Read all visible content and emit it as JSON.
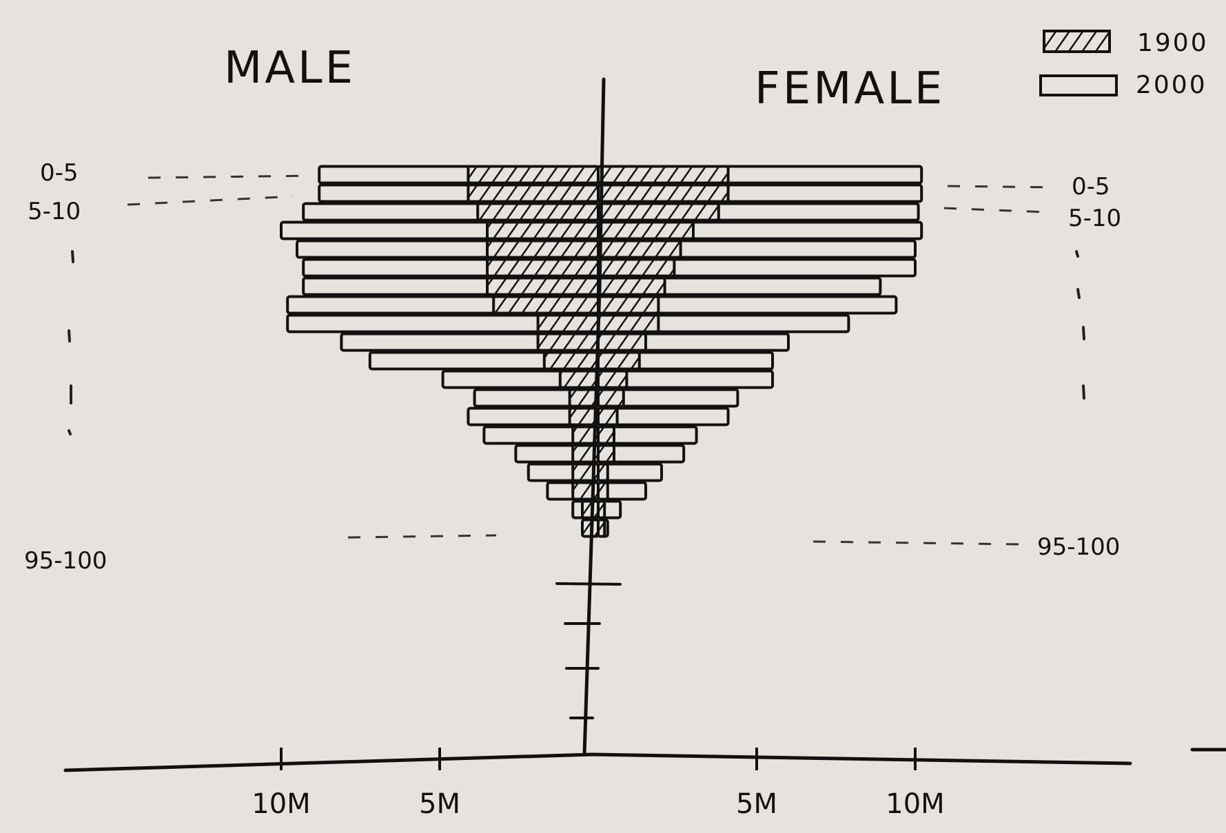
{
  "chart_data": {
    "type": "bar",
    "subtype": "population-pyramid",
    "orientation": "horizontal",
    "sides": {
      "left": "MALE",
      "right": "FEMALE"
    },
    "age_labels_left": {
      "top": "0-5",
      "second": "5-10",
      "bottom": "95-100"
    },
    "age_labels_right": {
      "top": "0-5",
      "second": "5-10",
      "bottom": "95-100"
    },
    "x_ticks": {
      "left": [
        "10M",
        "5M"
      ],
      "right": [
        "5M",
        "10M"
      ]
    },
    "x_tick_values": [
      -10,
      -5,
      5,
      10
    ],
    "xlim_millions": [
      -15,
      15
    ],
    "age_groups_count": 20,
    "legend": {
      "position": "top-right",
      "entries": [
        {
          "label": "1900",
          "pattern": "hatched"
        },
        {
          "label": "2000",
          "pattern": "open"
        }
      ]
    },
    "series": [
      {
        "name": "2000",
        "side": "male",
        "values": [
          8.8,
          8.8,
          9.3,
          10.0,
          9.5,
          9.3,
          9.3,
          9.8,
          9.8,
          8.1,
          7.2,
          4.9,
          3.9,
          4.1,
          3.6,
          2.6,
          2.2,
          1.6,
          0.8,
          0.3
        ]
      },
      {
        "name": "2000",
        "side": "female",
        "values": [
          10.2,
          10.2,
          10.1,
          10.2,
          10.0,
          10.0,
          8.9,
          9.4,
          7.9,
          6.0,
          5.5,
          5.5,
          4.4,
          4.1,
          3.1,
          2.7,
          2.0,
          1.5,
          0.7,
          0.3
        ]
      },
      {
        "name": "1900",
        "side": "male",
        "values": [
          4.1,
          4.1,
          3.8,
          3.5,
          3.5,
          3.5,
          3.5,
          3.3,
          1.9,
          1.9,
          1.7,
          1.2,
          0.9,
          0.9,
          0.8,
          0.8,
          0.8,
          0.8,
          0.5,
          0.5
        ]
      },
      {
        "name": "1900",
        "side": "female",
        "values": [
          4.1,
          4.1,
          3.8,
          3.0,
          2.6,
          2.4,
          2.1,
          1.9,
          1.9,
          1.5,
          1.3,
          0.9,
          0.8,
          0.6,
          0.5,
          0.5,
          0.3,
          0.3,
          0.2,
          0.2
        ]
      }
    ]
  }
}
